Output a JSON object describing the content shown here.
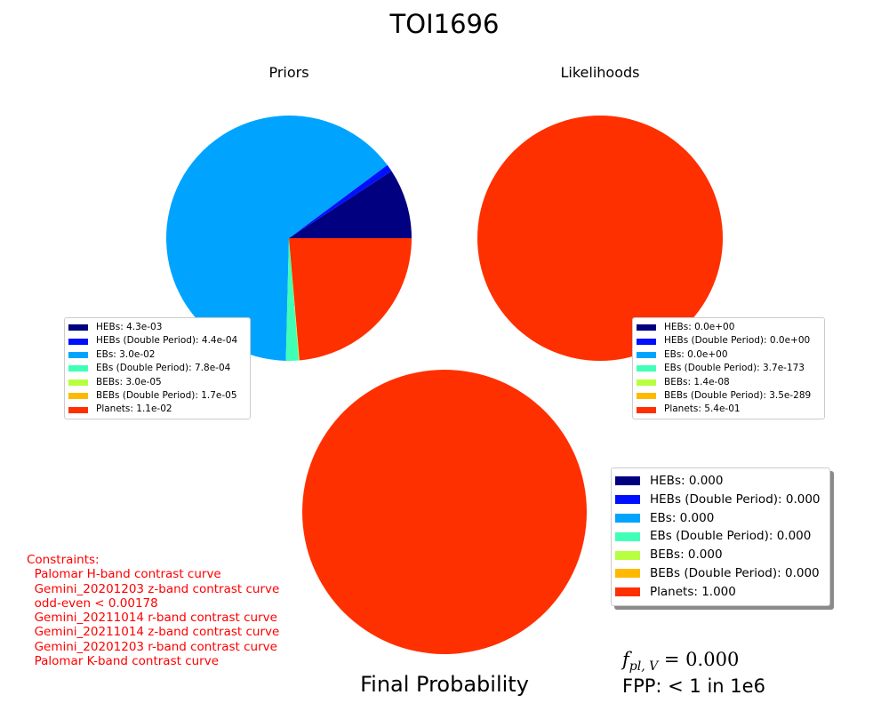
{
  "title": "TOI1696",
  "colors": {
    "HEBs": "#000080",
    "HEBs (Double Period)": "#0010ff",
    "EBs": "#00a4ff",
    "EBs (Double Period)": "#40ffb7",
    "BEBs": "#b7ff40",
    "BEBs (Double Period)": "#ffb900",
    "Planets": "#ff3000"
  },
  "chart_data": [
    {
      "type": "pie",
      "title": "Priors",
      "start_angle_deg": 0,
      "slices": [
        {
          "label": "HEBs",
          "value": 0.0043,
          "legend": "HEBs: 4.3e-03"
        },
        {
          "label": "HEBs (Double Period)",
          "value": 0.00044,
          "legend": "HEBs (Double Period): 4.4e-04"
        },
        {
          "label": "EBs",
          "value": 0.03,
          "legend": "EBs: 3.0e-02"
        },
        {
          "label": "EBs (Double Period)",
          "value": 0.00078,
          "legend": "EBs (Double Period): 7.8e-04"
        },
        {
          "label": "BEBs",
          "value": 3e-05,
          "legend": "BEBs: 3.0e-05"
        },
        {
          "label": "BEBs (Double Period)",
          "value": 1.7e-05,
          "legend": "BEBs (Double Period): 1.7e-05"
        },
        {
          "label": "Planets",
          "value": 0.011,
          "legend": "Planets: 1.1e-02"
        }
      ]
    },
    {
      "type": "pie",
      "title": "Likelihoods",
      "slices": [
        {
          "label": "HEBs",
          "value": 0.0,
          "legend": "HEBs: 0.0e+00"
        },
        {
          "label": "HEBs (Double Period)",
          "value": 0.0,
          "legend": "HEBs (Double Period): 0.0e+00"
        },
        {
          "label": "EBs",
          "value": 0.0,
          "legend": "EBs: 0.0e+00"
        },
        {
          "label": "EBs (Double Period)",
          "value": 3.7e-173,
          "legend": "EBs (Double Period): 3.7e-173"
        },
        {
          "label": "BEBs",
          "value": 1.4e-08,
          "legend": "BEBs: 1.4e-08"
        },
        {
          "label": "BEBs (Double Period)",
          "value": 3.5e-289,
          "legend": "BEBs (Double Period): 3.5e-289"
        },
        {
          "label": "Planets",
          "value": 0.54,
          "legend": "Planets: 5.4e-01"
        }
      ]
    },
    {
      "type": "pie",
      "title": "Final Probability",
      "slices": [
        {
          "label": "HEBs",
          "value": 0.0,
          "legend": "HEBs: 0.000"
        },
        {
          "label": "HEBs (Double Period)",
          "value": 0.0,
          "legend": "HEBs (Double Period): 0.000"
        },
        {
          "label": "EBs",
          "value": 0.0,
          "legend": "EBs: 0.000"
        },
        {
          "label": "EBs (Double Period)",
          "value": 0.0,
          "legend": "EBs (Double Period): 0.000"
        },
        {
          "label": "BEBs",
          "value": 0.0,
          "legend": "BEBs: 0.000"
        },
        {
          "label": "BEBs (Double Period)",
          "value": 0.0,
          "legend": "BEBs (Double Period): 0.000"
        },
        {
          "label": "Planets",
          "value": 1.0,
          "legend": "Planets: 1.000"
        }
      ]
    }
  ],
  "constraints": {
    "heading": "Constraints:",
    "lines": [
      "  Palomar H-band contrast curve",
      "  Gemini_20201203 z-band contrast curve",
      "  odd-even < 0.00178",
      "  Gemini_20211014 r-band contrast curve",
      "  Gemini_20211014 z-band contrast curve",
      "  Gemini_20201203 r-band contrast curve",
      "  Palomar K-band contrast curve"
    ]
  },
  "fpl": {
    "symbol": "f",
    "subscript": "pl, V",
    "value": " = 0.000"
  },
  "fpp_text": "FPP: < 1 in 1e6"
}
